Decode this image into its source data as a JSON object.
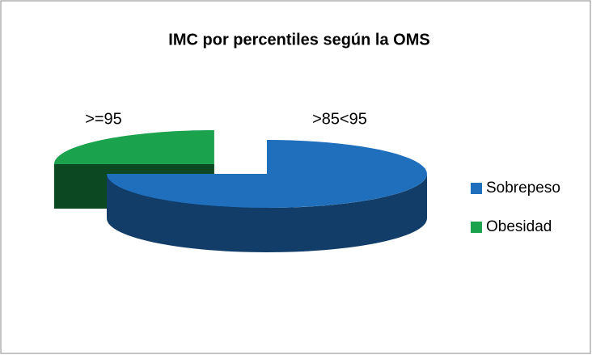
{
  "chart_data": {
    "type": "pie3d",
    "title": "IMC por percentiles según la OMS",
    "categories": [
      "Sobrepeso",
      "Obesidad"
    ],
    "values": [
      75,
      25
    ],
    "labels": [
      ">85<95",
      ">=95"
    ],
    "colors": [
      "#1f6fbd",
      "#1ba24c"
    ],
    "exploded": [
      false,
      true
    ],
    "legend": "right"
  }
}
